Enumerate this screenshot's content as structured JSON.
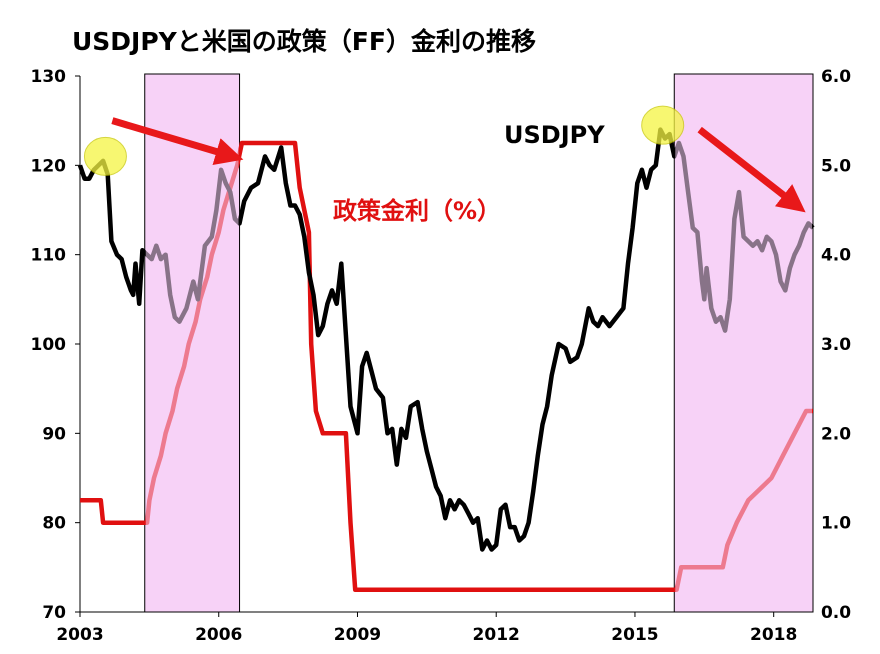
{
  "chart_data": {
    "type": "line",
    "title": "USDJPYと米国の政策（FF）金利の推移",
    "x_range": [
      2003.0,
      2018.85
    ],
    "x_ticks": [
      "2003",
      "2006",
      "2009",
      "2012",
      "2015",
      "2018"
    ],
    "y_left": {
      "range": [
        70,
        130
      ],
      "ticks": [
        "70",
        "80",
        "90",
        "100",
        "110",
        "120",
        "130"
      ]
    },
    "y_right": {
      "range": [
        0.0,
        6.0
      ],
      "ticks": [
        "0.0",
        "1.0",
        "2.0",
        "3.0",
        "4.0",
        "5.0",
        "6.0"
      ]
    },
    "grid": false,
    "shaded_periods": [
      {
        "start": 2004.4,
        "end": 2006.45,
        "color": "#f7d2f7"
      },
      {
        "start": 2015.85,
        "end": 2018.85,
        "color": "#f7d2f7"
      }
    ],
    "series": [
      {
        "name": "USDJPY",
        "axis": "left",
        "color": "#000000",
        "points": [
          [
            2003.0,
            120
          ],
          [
            2003.1,
            118.5
          ],
          [
            2003.2,
            118.5
          ],
          [
            2003.3,
            119.5
          ],
          [
            2003.4,
            120
          ],
          [
            2003.5,
            120.5
          ],
          [
            2003.6,
            119
          ],
          [
            2003.68,
            111.5
          ],
          [
            2003.8,
            110
          ],
          [
            2003.9,
            109.5
          ],
          [
            2004.0,
            107.5
          ],
          [
            2004.1,
            106
          ],
          [
            2004.15,
            105.5
          ],
          [
            2004.2,
            109
          ],
          [
            2004.28,
            104.5
          ],
          [
            2004.35,
            110.5
          ],
          [
            2004.45,
            110
          ],
          [
            2004.55,
            109.5
          ],
          [
            2004.65,
            111
          ],
          [
            2004.75,
            109.5
          ],
          [
            2004.85,
            110
          ],
          [
            2004.95,
            105.5
          ],
          [
            2005.05,
            103
          ],
          [
            2005.15,
            102.5
          ],
          [
            2005.3,
            104
          ],
          [
            2005.45,
            107
          ],
          [
            2005.55,
            105
          ],
          [
            2005.7,
            111
          ],
          [
            2005.85,
            112
          ],
          [
            2005.95,
            115
          ],
          [
            2006.05,
            119.5
          ],
          [
            2006.15,
            118
          ],
          [
            2006.25,
            117
          ],
          [
            2006.35,
            114
          ],
          [
            2006.45,
            113.5
          ],
          [
            2006.55,
            116
          ],
          [
            2006.7,
            117.5
          ],
          [
            2006.85,
            118
          ],
          [
            2007.0,
            121
          ],
          [
            2007.1,
            120
          ],
          [
            2007.2,
            119.5
          ],
          [
            2007.35,
            122
          ],
          [
            2007.45,
            118
          ],
          [
            2007.55,
            115.5
          ],
          [
            2007.65,
            115.5
          ],
          [
            2007.75,
            114.5
          ],
          [
            2007.85,
            112
          ],
          [
            2007.95,
            108
          ],
          [
            2008.05,
            105.5
          ],
          [
            2008.15,
            101
          ],
          [
            2008.25,
            102
          ],
          [
            2008.35,
            104.5
          ],
          [
            2008.45,
            106
          ],
          [
            2008.55,
            104.5
          ],
          [
            2008.65,
            109
          ],
          [
            2008.75,
            101
          ],
          [
            2008.85,
            93
          ],
          [
            2008.95,
            91
          ],
          [
            2009.0,
            90
          ],
          [
            2009.1,
            97.5
          ],
          [
            2009.2,
            99
          ],
          [
            2009.3,
            97
          ],
          [
            2009.4,
            95
          ],
          [
            2009.55,
            94
          ],
          [
            2009.65,
            90
          ],
          [
            2009.75,
            90.5
          ],
          [
            2009.85,
            86.5
          ],
          [
            2009.95,
            90.5
          ],
          [
            2010.05,
            89.5
          ],
          [
            2010.15,
            93
          ],
          [
            2010.3,
            93.5
          ],
          [
            2010.4,
            90.5
          ],
          [
            2010.5,
            88
          ],
          [
            2010.6,
            86
          ],
          [
            2010.7,
            84
          ],
          [
            2010.8,
            83
          ],
          [
            2010.9,
            80.5
          ],
          [
            2011.0,
            82.5
          ],
          [
            2011.1,
            81.5
          ],
          [
            2011.2,
            82.5
          ],
          [
            2011.3,
            82
          ],
          [
            2011.4,
            81
          ],
          [
            2011.5,
            80
          ],
          [
            2011.6,
            80.5
          ],
          [
            2011.7,
            77
          ],
          [
            2011.8,
            78
          ],
          [
            2011.9,
            77
          ],
          [
            2012.0,
            77.5
          ],
          [
            2012.1,
            81.5
          ],
          [
            2012.2,
            82
          ],
          [
            2012.3,
            79.5
          ],
          [
            2012.4,
            79.5
          ],
          [
            2012.5,
            78
          ],
          [
            2012.6,
            78.5
          ],
          [
            2012.7,
            80
          ],
          [
            2012.8,
            83.5
          ],
          [
            2012.9,
            87.5
          ],
          [
            2013.0,
            91
          ],
          [
            2013.1,
            93
          ],
          [
            2013.2,
            96.5
          ],
          [
            2013.35,
            100
          ],
          [
            2013.5,
            99.5
          ],
          [
            2013.6,
            98
          ],
          [
            2013.75,
            98.5
          ],
          [
            2013.85,
            100
          ],
          [
            2014.0,
            104
          ],
          [
            2014.1,
            102.5
          ],
          [
            2014.2,
            102
          ],
          [
            2014.3,
            103
          ],
          [
            2014.45,
            102
          ],
          [
            2014.6,
            103
          ],
          [
            2014.75,
            104
          ],
          [
            2014.85,
            109
          ],
          [
            2014.95,
            113
          ],
          [
            2015.05,
            118
          ],
          [
            2015.15,
            119.5
          ],
          [
            2015.25,
            117.5
          ],
          [
            2015.35,
            119.5
          ],
          [
            2015.45,
            120
          ],
          [
            2015.55,
            124
          ],
          [
            2015.65,
            123
          ],
          [
            2015.75,
            123.5
          ],
          [
            2015.85,
            121
          ],
          [
            2015.95,
            122.5
          ],
          [
            2016.05,
            121
          ],
          [
            2016.15,
            117
          ],
          [
            2016.25,
            113
          ],
          [
            2016.35,
            112.5
          ],
          [
            2016.45,
            107
          ],
          [
            2016.5,
            105
          ],
          [
            2016.55,
            108.5
          ],
          [
            2016.65,
            104
          ],
          [
            2016.75,
            102.5
          ],
          [
            2016.85,
            103
          ],
          [
            2016.95,
            101.5
          ],
          [
            2017.05,
            105
          ],
          [
            2017.15,
            114
          ],
          [
            2017.25,
            117
          ],
          [
            2017.35,
            112
          ],
          [
            2017.45,
            111.5
          ],
          [
            2017.55,
            111
          ],
          [
            2017.65,
            111.5
          ],
          [
            2017.75,
            110.5
          ],
          [
            2017.85,
            112
          ],
          [
            2017.95,
            111.5
          ],
          [
            2018.05,
            110
          ],
          [
            2018.15,
            107
          ],
          [
            2018.25,
            106
          ],
          [
            2018.35,
            108.5
          ],
          [
            2018.45,
            110
          ],
          [
            2018.55,
            111
          ],
          [
            2018.65,
            112.5
          ],
          [
            2018.75,
            113.5
          ],
          [
            2018.85,
            113
          ]
        ]
      },
      {
        "name": "政策金利（%）",
        "axis": "right",
        "color": "#e01010",
        "points": [
          [
            2003.0,
            1.25
          ],
          [
            2003.45,
            1.25
          ],
          [
            2003.5,
            1.0
          ],
          [
            2004.45,
            1.0
          ],
          [
            2004.5,
            1.25
          ],
          [
            2004.6,
            1.5
          ],
          [
            2004.75,
            1.75
          ],
          [
            2004.85,
            2.0
          ],
          [
            2005.0,
            2.25
          ],
          [
            2005.1,
            2.5
          ],
          [
            2005.25,
            2.75
          ],
          [
            2005.35,
            3.0
          ],
          [
            2005.5,
            3.25
          ],
          [
            2005.6,
            3.5
          ],
          [
            2005.75,
            3.75
          ],
          [
            2005.85,
            4.0
          ],
          [
            2006.0,
            4.25
          ],
          [
            2006.1,
            4.5
          ],
          [
            2006.25,
            4.75
          ],
          [
            2006.4,
            5.0
          ],
          [
            2006.5,
            5.25
          ],
          [
            2007.65,
            5.25
          ],
          [
            2007.75,
            4.75
          ],
          [
            2007.85,
            4.5
          ],
          [
            2007.95,
            4.25
          ],
          [
            2008.0,
            3.0
          ],
          [
            2008.1,
            2.25
          ],
          [
            2008.25,
            2.0
          ],
          [
            2008.75,
            2.0
          ],
          [
            2008.8,
            1.5
          ],
          [
            2008.85,
            1.0
          ],
          [
            2008.95,
            0.25
          ],
          [
            2015.9,
            0.25
          ],
          [
            2016.0,
            0.5
          ],
          [
            2016.9,
            0.5
          ],
          [
            2017.0,
            0.75
          ],
          [
            2017.2,
            1.0
          ],
          [
            2017.45,
            1.25
          ],
          [
            2017.95,
            1.5
          ],
          [
            2018.2,
            1.75
          ],
          [
            2018.45,
            2.0
          ],
          [
            2018.7,
            2.25
          ],
          [
            2018.85,
            2.25
          ]
        ]
      }
    ],
    "annotations": {
      "usdjpy_label": "USDJPY",
      "rate_label": "政策金利（%）",
      "highlight_circles": [
        {
          "x": 2003.55,
          "y": 121
        },
        {
          "x": 2015.6,
          "y": 124.5
        }
      ],
      "arrows": [
        {
          "from": [
            2003.7,
            125
          ],
          "to": [
            2006.3,
            121
          ],
          "color": "#e8181a"
        },
        {
          "from": [
            2016.4,
            124
          ],
          "to": [
            2018.5,
            115.5
          ],
          "color": "#e8181a"
        }
      ]
    }
  }
}
